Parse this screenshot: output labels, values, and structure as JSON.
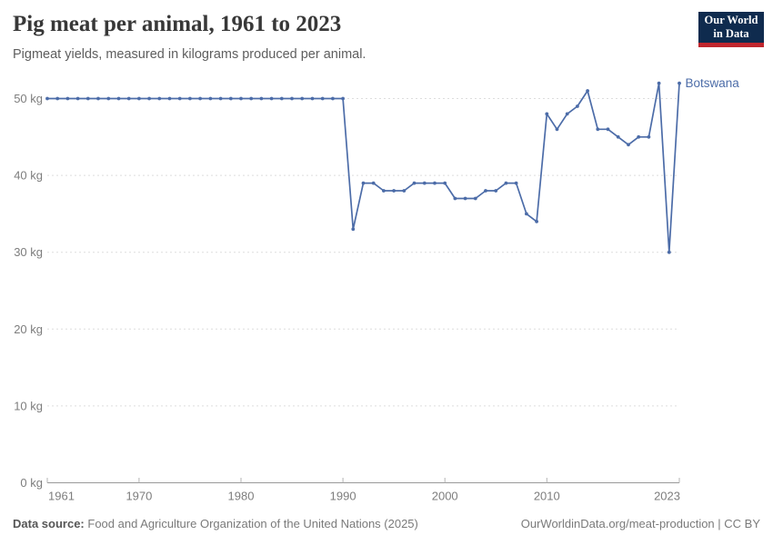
{
  "chart_data": {
    "type": "line",
    "title": "Pig meat per animal, 1961 to 2023",
    "subtitle": "Pigmeat yields, measured in kilograms produced per animal.",
    "x": [
      1961,
      1962,
      1963,
      1964,
      1965,
      1966,
      1967,
      1968,
      1969,
      1970,
      1971,
      1972,
      1973,
      1974,
      1975,
      1976,
      1977,
      1978,
      1979,
      1980,
      1981,
      1982,
      1983,
      1984,
      1985,
      1986,
      1987,
      1988,
      1989,
      1990,
      1991,
      1992,
      1993,
      1994,
      1995,
      1996,
      1997,
      1998,
      1999,
      2000,
      2001,
      2002,
      2003,
      2004,
      2005,
      2006,
      2007,
      2008,
      2009,
      2010,
      2011,
      2012,
      2013,
      2014,
      2015,
      2016,
      2017,
      2018,
      2019,
      2020,
      2021,
      2022,
      2023
    ],
    "series": [
      {
        "name": "Botswana",
        "values": [
          50,
          50,
          50,
          50,
          50,
          50,
          50,
          50,
          50,
          50,
          50,
          50,
          50,
          50,
          50,
          50,
          50,
          50,
          50,
          50,
          50,
          50,
          50,
          50,
          50,
          50,
          50,
          50,
          50,
          50,
          33,
          39,
          39,
          38,
          38,
          38,
          39,
          39,
          39,
          39,
          37,
          37,
          37,
          38,
          38,
          39,
          39,
          35,
          34,
          48,
          46,
          48,
          49,
          51,
          46,
          46,
          45,
          44,
          45,
          45,
          52,
          30,
          52
        ]
      }
    ],
    "xlabel": "",
    "ylabel": "",
    "ylim": [
      0,
      50
    ],
    "yticks": [
      0,
      10,
      20,
      30,
      40,
      50
    ],
    "ytick_suffix": " kg",
    "xticks": [
      1961,
      1970,
      1980,
      1990,
      2000,
      2010,
      2023
    ],
    "grid": "horizontal-dashed",
    "legend_position": "end-of-line-label",
    "line_color": "#4C6CA8",
    "axis_color": "#999999",
    "gridline_color": "#dddddd",
    "tick_label_color": "#7d7d7d"
  },
  "header": {
    "logo": {
      "line1": "Our World",
      "line2": "in Data"
    }
  },
  "footer": {
    "source_label": "Data source:",
    "source_text": "Food and Agriculture Organization of the United Nations (2025)",
    "credit": "OurWorldinData.org/meat-production | CC BY"
  }
}
